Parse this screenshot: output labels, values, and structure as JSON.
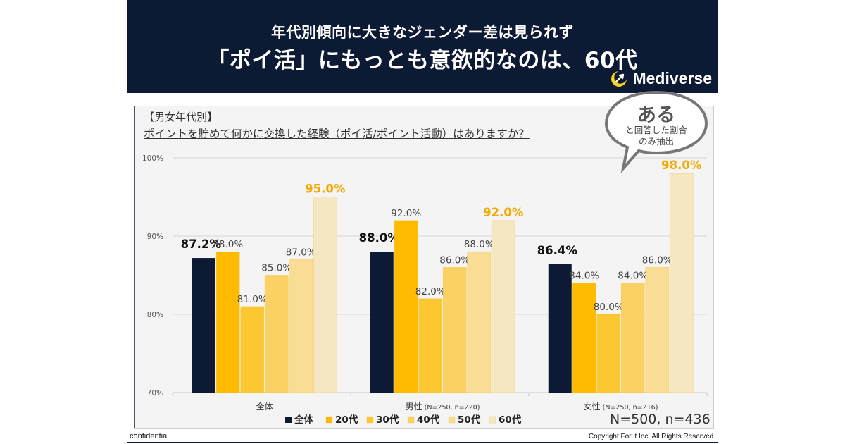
{
  "header": {
    "subtitle": "年代別傾向に大きなジェンダー差は見られず",
    "title": "「ポイ活」にもっとも意欲的なのは、60代",
    "brand": "Mediverse"
  },
  "panel": {
    "tag": "【男女年代別】",
    "question": "ポイントを貯めて何かに交換した経験（ポイ活/ポイント活動）はありますか？"
  },
  "bubble": {
    "big": "ある",
    "line1": "と回答した割合",
    "line2": "のみ抽出"
  },
  "footer": {
    "confidential": "confidential",
    "copyright": "Copyright For it Inc. All Rights Reserved.",
    "sample": "N=500, n=436"
  },
  "colors": {
    "header_bg": "#0c1a33",
    "total": "#0c1a33",
    "age20": "#ffbb00",
    "age30": "#fcc832",
    "age40": "#fad162",
    "age50": "#f9dd94",
    "age60": "#f5e7c2",
    "highlight_label": "#f5a800"
  },
  "chart_data": {
    "type": "bar",
    "title": "ポイントを貯めて何かに交換した経験（ポイ活/ポイント活動）はありますか？",
    "xlabel": "",
    "ylabel": "",
    "ylim": [
      70,
      100
    ],
    "yticks": [
      70,
      80,
      90,
      100
    ],
    "ytick_labels": [
      "70%",
      "80%",
      "90%",
      "100%"
    ],
    "grid": true,
    "legend_position": "bottom",
    "categories": [
      "全体",
      "男性",
      "女性"
    ],
    "category_notes": [
      "",
      "(N=250, n=220)",
      "(N=250, n=216)"
    ],
    "series": [
      {
        "name": "全体",
        "values": [
          87.2,
          88.0,
          86.4
        ],
        "color": "#0c1a33"
      },
      {
        "name": "20代",
        "values": [
          88.0,
          92.0,
          84.0
        ],
        "color": "#ffbb00"
      },
      {
        "name": "30代",
        "values": [
          81.0,
          82.0,
          80.0
        ],
        "color": "#fcc832"
      },
      {
        "name": "40代",
        "values": [
          85.0,
          86.0,
          84.0
        ],
        "color": "#fad162"
      },
      {
        "name": "50代",
        "values": [
          87.0,
          88.0,
          86.0
        ],
        "color": "#f9dd94"
      },
      {
        "name": "60代",
        "values": [
          95.0,
          92.0,
          98.0
        ],
        "color": "#f5e7c2"
      }
    ],
    "value_label_suffix": "%",
    "value_label_decimals": 1
  }
}
